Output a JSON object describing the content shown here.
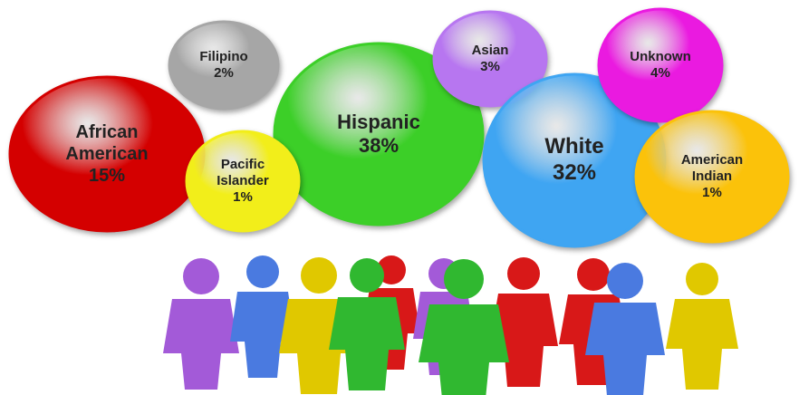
{
  "chart_data": {
    "type": "bubble",
    "categories": [
      "Filipino",
      "African American",
      "Hispanic",
      "Pacific Islander",
      "Asian",
      "White",
      "Unknown",
      "American Indian"
    ],
    "values": [
      2,
      15,
      38,
      1,
      3,
      32,
      4,
      1
    ],
    "value_labels": [
      "2%",
      "15%",
      "38%",
      "1%",
      "3%",
      "32%",
      "4%",
      "1%"
    ],
    "colors": [
      "#a6a6a6",
      "#d40000",
      "#3ccf28",
      "#f2ee1a",
      "#b776f0",
      "#3fa5f2",
      "#ea1ae0",
      "#fbc20a"
    ]
  }
}
